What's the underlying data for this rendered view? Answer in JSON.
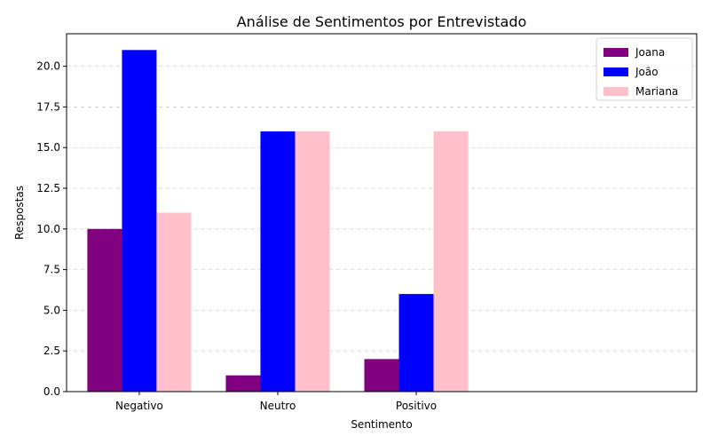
{
  "chart_data": {
    "type": "bar",
    "title": "Análise de Sentimentos por Entrevistado",
    "xlabel": "Sentimento",
    "ylabel": "Respostas",
    "categories": [
      "Negativo",
      "Neutro",
      "Positivo"
    ],
    "series": [
      {
        "name": "Joana",
        "color": "#800080",
        "values": [
          10,
          1,
          2
        ]
      },
      {
        "name": "João",
        "color": "#0000ff",
        "values": [
          21,
          16,
          6
        ]
      },
      {
        "name": "Mariana",
        "color": "#ffc0cb",
        "values": [
          11,
          16,
          16
        ]
      }
    ],
    "ylim": [
      0,
      22
    ],
    "yticks": [
      "0.0",
      "2.5",
      "5.0",
      "7.5",
      "10.0",
      "12.5",
      "15.0",
      "17.5",
      "20.0"
    ],
    "grid": true,
    "legend_position": "top-right"
  }
}
